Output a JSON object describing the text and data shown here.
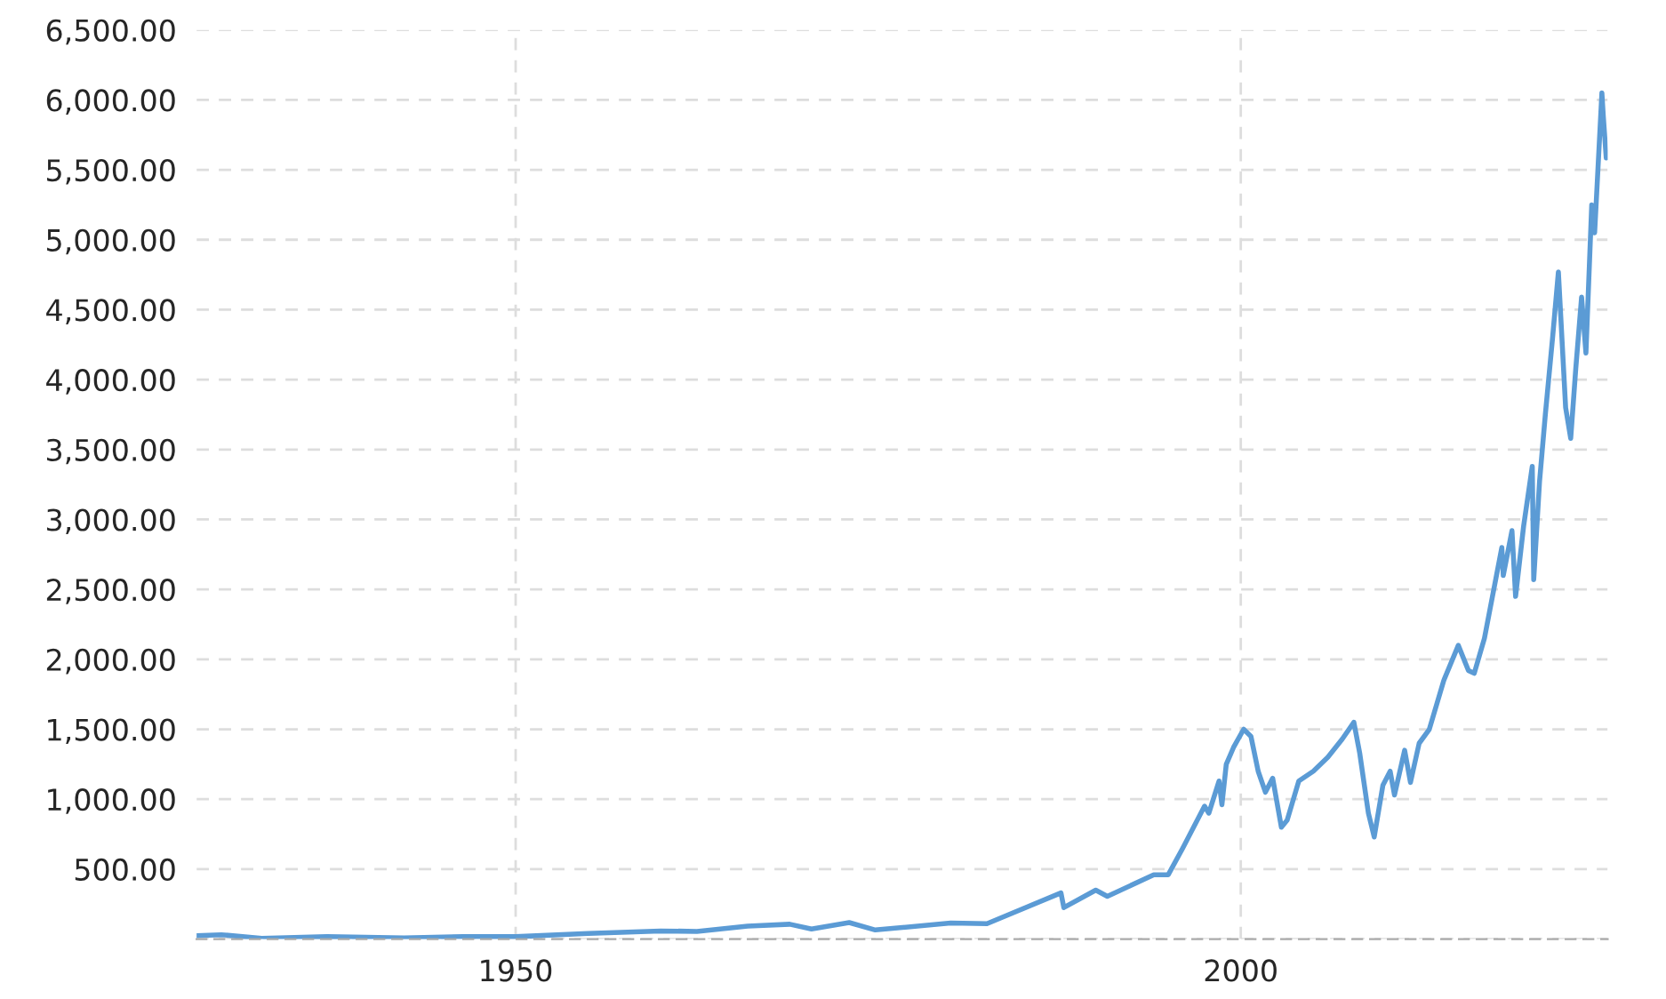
{
  "chart_data": {
    "type": "line",
    "grid": true,
    "marker": "none",
    "line_style": "solid",
    "xlim": [
      1928,
      2025.3
    ],
    "xticks": [
      1950,
      2000
    ],
    "ylim": [
      0,
      6500
    ],
    "yticks": [
      {
        "value": 0,
        "label": null
      },
      {
        "value": 500,
        "label": "500.00"
      },
      {
        "value": 1000,
        "label": "1,000.00"
      },
      {
        "value": 1500,
        "label": "1,500.00"
      },
      {
        "value": 2000,
        "label": "2,000.00"
      },
      {
        "value": 2500,
        "label": "2,500.00"
      },
      {
        "value": 3000,
        "label": "3,000.00"
      },
      {
        "value": 3500,
        "label": "3,500.00"
      },
      {
        "value": 4000,
        "label": "4,000.00"
      },
      {
        "value": 4500,
        "label": "4,500.00"
      },
      {
        "value": 5000,
        "label": "5,000.00"
      },
      {
        "value": 5500,
        "label": "5,500.00"
      },
      {
        "value": 6000,
        "label": "6,000.00"
      },
      {
        "value": 6500,
        "label": "6,500.00"
      }
    ],
    "series": [
      {
        "color": "#5b9bd5",
        "x": [
          1928.0,
          1929.7,
          1932.5,
          1937.0,
          1942.3,
          1946.4,
          1950.0,
          1955.0,
          1960.0,
          1962.5,
          1966.0,
          1968.9,
          1970.4,
          1973.0,
          1974.8,
          1980.0,
          1982.5,
          1987.6,
          1987.8,
          1990.0,
          1990.8,
          1994.0,
          1995.0,
          1996.0,
          1997.5,
          1997.8,
          1998.5,
          1998.7,
          1999.0,
          1999.5,
          2000.2,
          2000.7,
          2001.2,
          2001.7,
          2002.2,
          2002.8,
          2003.2,
          2004.0,
          2005.0,
          2006.0,
          2007.0,
          2007.8,
          2008.2,
          2008.8,
          2009.2,
          2009.8,
          2010.3,
          2010.6,
          2011.3,
          2011.7,
          2012.3,
          2013.0,
          2014.0,
          2015.0,
          2015.7,
          2016.1,
          2016.8,
          2018.0,
          2018.1,
          2018.7,
          2018.95,
          2019.5,
          2020.1,
          2020.2,
          2020.6,
          2021.0,
          2021.5,
          2021.9,
          2022.4,
          2022.75,
          2023.1,
          2023.5,
          2023.8,
          2024.2,
          2024.4,
          2024.9,
          2025.0,
          2025.2
        ],
        "values": [
          24,
          31,
          5,
          17,
          8,
          18,
          17,
          40,
          58,
          55,
          92,
          106,
          72,
          118,
          65,
          115,
          110,
          330,
          225,
          350,
          305,
          460,
          460,
          650,
          950,
          900,
          1130,
          960,
          1250,
          1370,
          1500,
          1450,
          1200,
          1050,
          1150,
          800,
          850,
          1130,
          1200,
          1300,
          1430,
          1550,
          1330,
          900,
          730,
          1100,
          1200,
          1030,
          1350,
          1120,
          1400,
          1500,
          1850,
          2100,
          1920,
          1900,
          2150,
          2800,
          2600,
          2920,
          2450,
          2950,
          3380,
          2570,
          3270,
          3750,
          4300,
          4770,
          3800,
          3580,
          4080,
          4590,
          4190,
          5250,
          5050,
          6050,
          5880,
          5585
        ]
      }
    ]
  }
}
